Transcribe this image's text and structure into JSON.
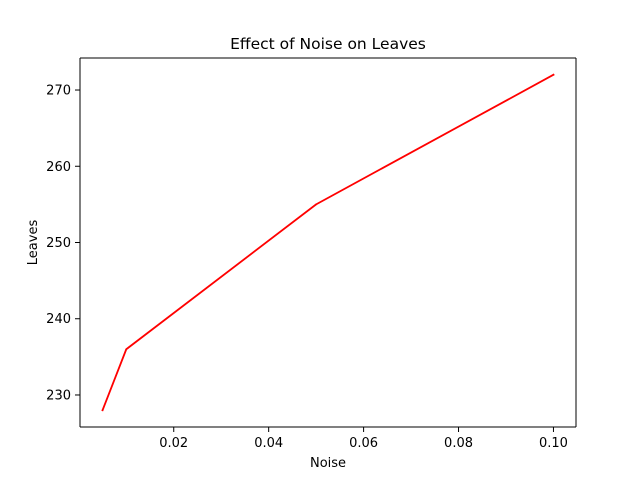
{
  "chart_data": {
    "type": "line",
    "title": "Effect of Noise on Leaves",
    "xlabel": "Noise",
    "ylabel": "Leaves",
    "x": [
      0.005,
      0.01,
      0.05,
      0.1
    ],
    "series": [
      {
        "values": [
          228,
          236,
          255,
          272
        ],
        "color": "#ff0000"
      }
    ],
    "xlim": [
      0.00025,
      0.10475
    ],
    "ylim": [
      225.8,
      274.2
    ],
    "xticks": [
      0.02,
      0.04,
      0.06,
      0.08,
      0.1
    ],
    "xtick_labels": [
      "0.02",
      "0.04",
      "0.06",
      "0.08",
      "0.10"
    ],
    "yticks": [
      230,
      240,
      250,
      260,
      270
    ],
    "ytick_labels": [
      "230",
      "240",
      "250",
      "260",
      "270"
    ],
    "grid": false,
    "legend": "none"
  }
}
